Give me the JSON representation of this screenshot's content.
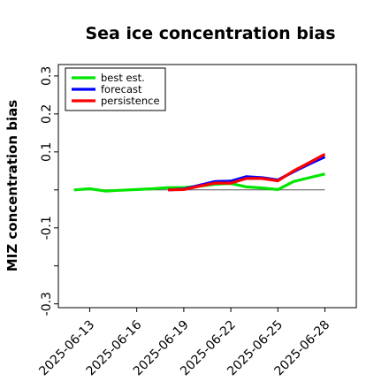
{
  "chart_data": {
    "type": "line",
    "title": "Sea ice concentration bias",
    "xlabel": "",
    "ylabel": "MIZ concentration bias",
    "ylim": [
      -0.31,
      0.33
    ],
    "yticks": [
      -0.3,
      -0.1,
      0.1,
      0.2,
      0.3
    ],
    "yticks_minor": [
      -0.2,
      0.0
    ],
    "xticks": [
      "2025-06-13",
      "2025-06-16",
      "2025-06-19",
      "2025-06-22",
      "2025-06-25",
      "2025-06-28"
    ],
    "highlighted_xtick": "2025-06-19",
    "highlight_color": "#228b22",
    "zero_line": true,
    "grid": false,
    "legend_position": "top-left",
    "series": [
      {
        "name": "best est.",
        "color": "#00e600",
        "x": [
          "2025-06-12",
          "2025-06-13",
          "2025-06-14",
          "2025-06-15",
          "2025-06-16",
          "2025-06-17",
          "2025-06-18",
          "2025-06-19",
          "2025-06-20",
          "2025-06-21",
          "2025-06-22",
          "2025-06-23",
          "2025-06-24",
          "2025-06-25",
          "2025-06-26",
          "2025-06-27",
          "2025-06-28"
        ],
        "y": [
          0.0,
          0.003,
          -0.003,
          -0.001,
          0.001,
          0.003,
          0.006,
          0.006,
          0.01,
          0.015,
          0.017,
          0.008,
          0.005,
          0.001,
          0.022,
          0.032,
          0.042
        ]
      },
      {
        "name": "forecast",
        "color": "#0000ff",
        "x": [
          "2025-06-18",
          "2025-06-19",
          "2025-06-20",
          "2025-06-21",
          "2025-06-22",
          "2025-06-23",
          "2025-06-24",
          "2025-06-25",
          "2025-06-26",
          "2025-06-27",
          "2025-06-28"
        ],
        "y": [
          0.0,
          0.002,
          0.012,
          0.022,
          0.023,
          0.035,
          0.032,
          0.026,
          0.048,
          0.068,
          0.087
        ]
      },
      {
        "name": "persistence",
        "color": "#ff0000",
        "x": [
          "2025-06-18",
          "2025-06-19",
          "2025-06-20",
          "2025-06-21",
          "2025-06-22",
          "2025-06-23",
          "2025-06-24",
          "2025-06-25",
          "2025-06-26",
          "2025-06-27",
          "2025-06-28"
        ],
        "y": [
          0.0,
          0.001,
          0.01,
          0.018,
          0.018,
          0.03,
          0.03,
          0.024,
          0.05,
          0.072,
          0.094
        ]
      }
    ]
  }
}
